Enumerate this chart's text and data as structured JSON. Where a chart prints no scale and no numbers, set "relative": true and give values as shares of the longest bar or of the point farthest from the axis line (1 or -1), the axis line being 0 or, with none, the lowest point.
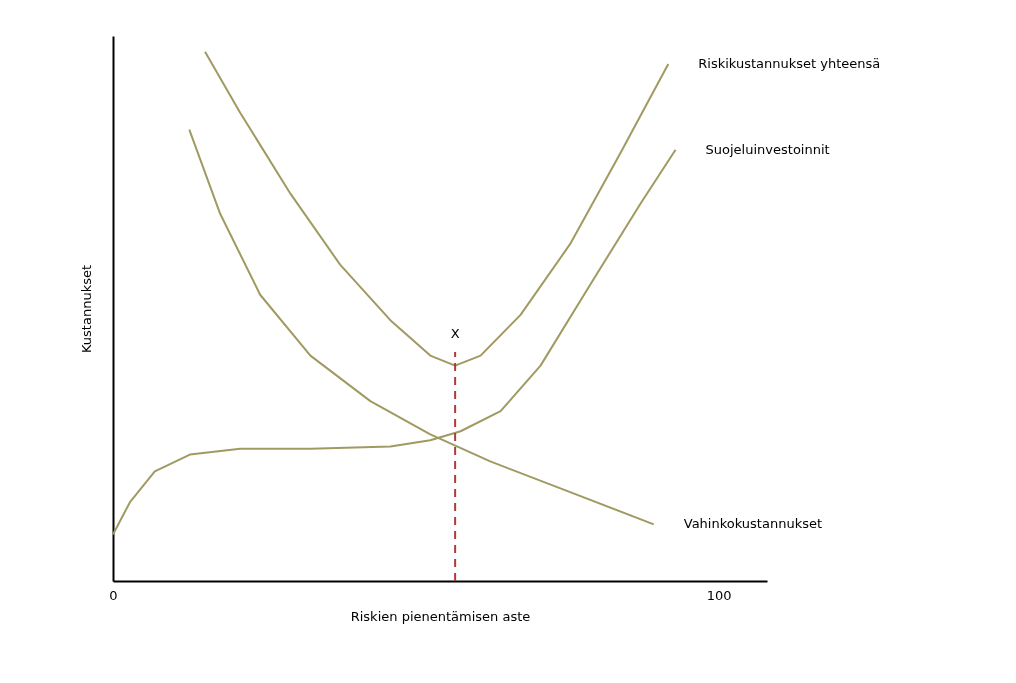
{
  "chart_data": {
    "type": "line",
    "relative": true,
    "xlabel": "Riskien pienentämisen aste",
    "ylabel": "Kustannukset",
    "xlim": [
      0,
      108
    ],
    "xticks": [
      0,
      100
    ],
    "legend": false,
    "grid": false,
    "marker": "none",
    "line_style": "solid",
    "series": [
      {
        "name": "Riskikustannukset yhteensä",
        "color": "#a09a62",
        "x": [
          15.2,
          21,
          29.3,
          37.5,
          45.8,
          52.4,
          56.5,
          60.7,
          67.3,
          75.5,
          83.8,
          91.7
        ],
        "values": [
          1.0,
          0.885,
          0.732,
          0.598,
          0.493,
          0.426,
          0.407,
          0.426,
          0.503,
          0.637,
          0.809,
          0.977
        ]
      },
      {
        "name": "Suojeluinvestoinnit",
        "color": "#a09a62",
        "x": [
          0,
          2.8,
          6.9,
          12.7,
          21,
          32.6,
          45.8,
          52.4,
          57.4,
          64,
          70.6,
          78.8,
          87.1,
          92.9
        ],
        "values": [
          0.088,
          0.149,
          0.207,
          0.239,
          0.25,
          0.25,
          0.254,
          0.266,
          0.283,
          0.321,
          0.407,
          0.56,
          0.713,
          0.815
        ]
      },
      {
        "name": "Vahinkokustannukset",
        "color": "#a09a62",
        "x": [
          12.6,
          17.7,
          24.3,
          32.6,
          42.5,
          52.4,
          62.3,
          75.5,
          89.3
        ],
        "values": [
          0.853,
          0.694,
          0.541,
          0.426,
          0.34,
          0.277,
          0.226,
          0.168,
          0.107
        ]
      }
    ],
    "ref_lines": [
      {
        "axis": "x",
        "value": 56.5,
        "label": "X",
        "color": "#b03a3a",
        "line_style": "dashed"
      }
    ]
  }
}
